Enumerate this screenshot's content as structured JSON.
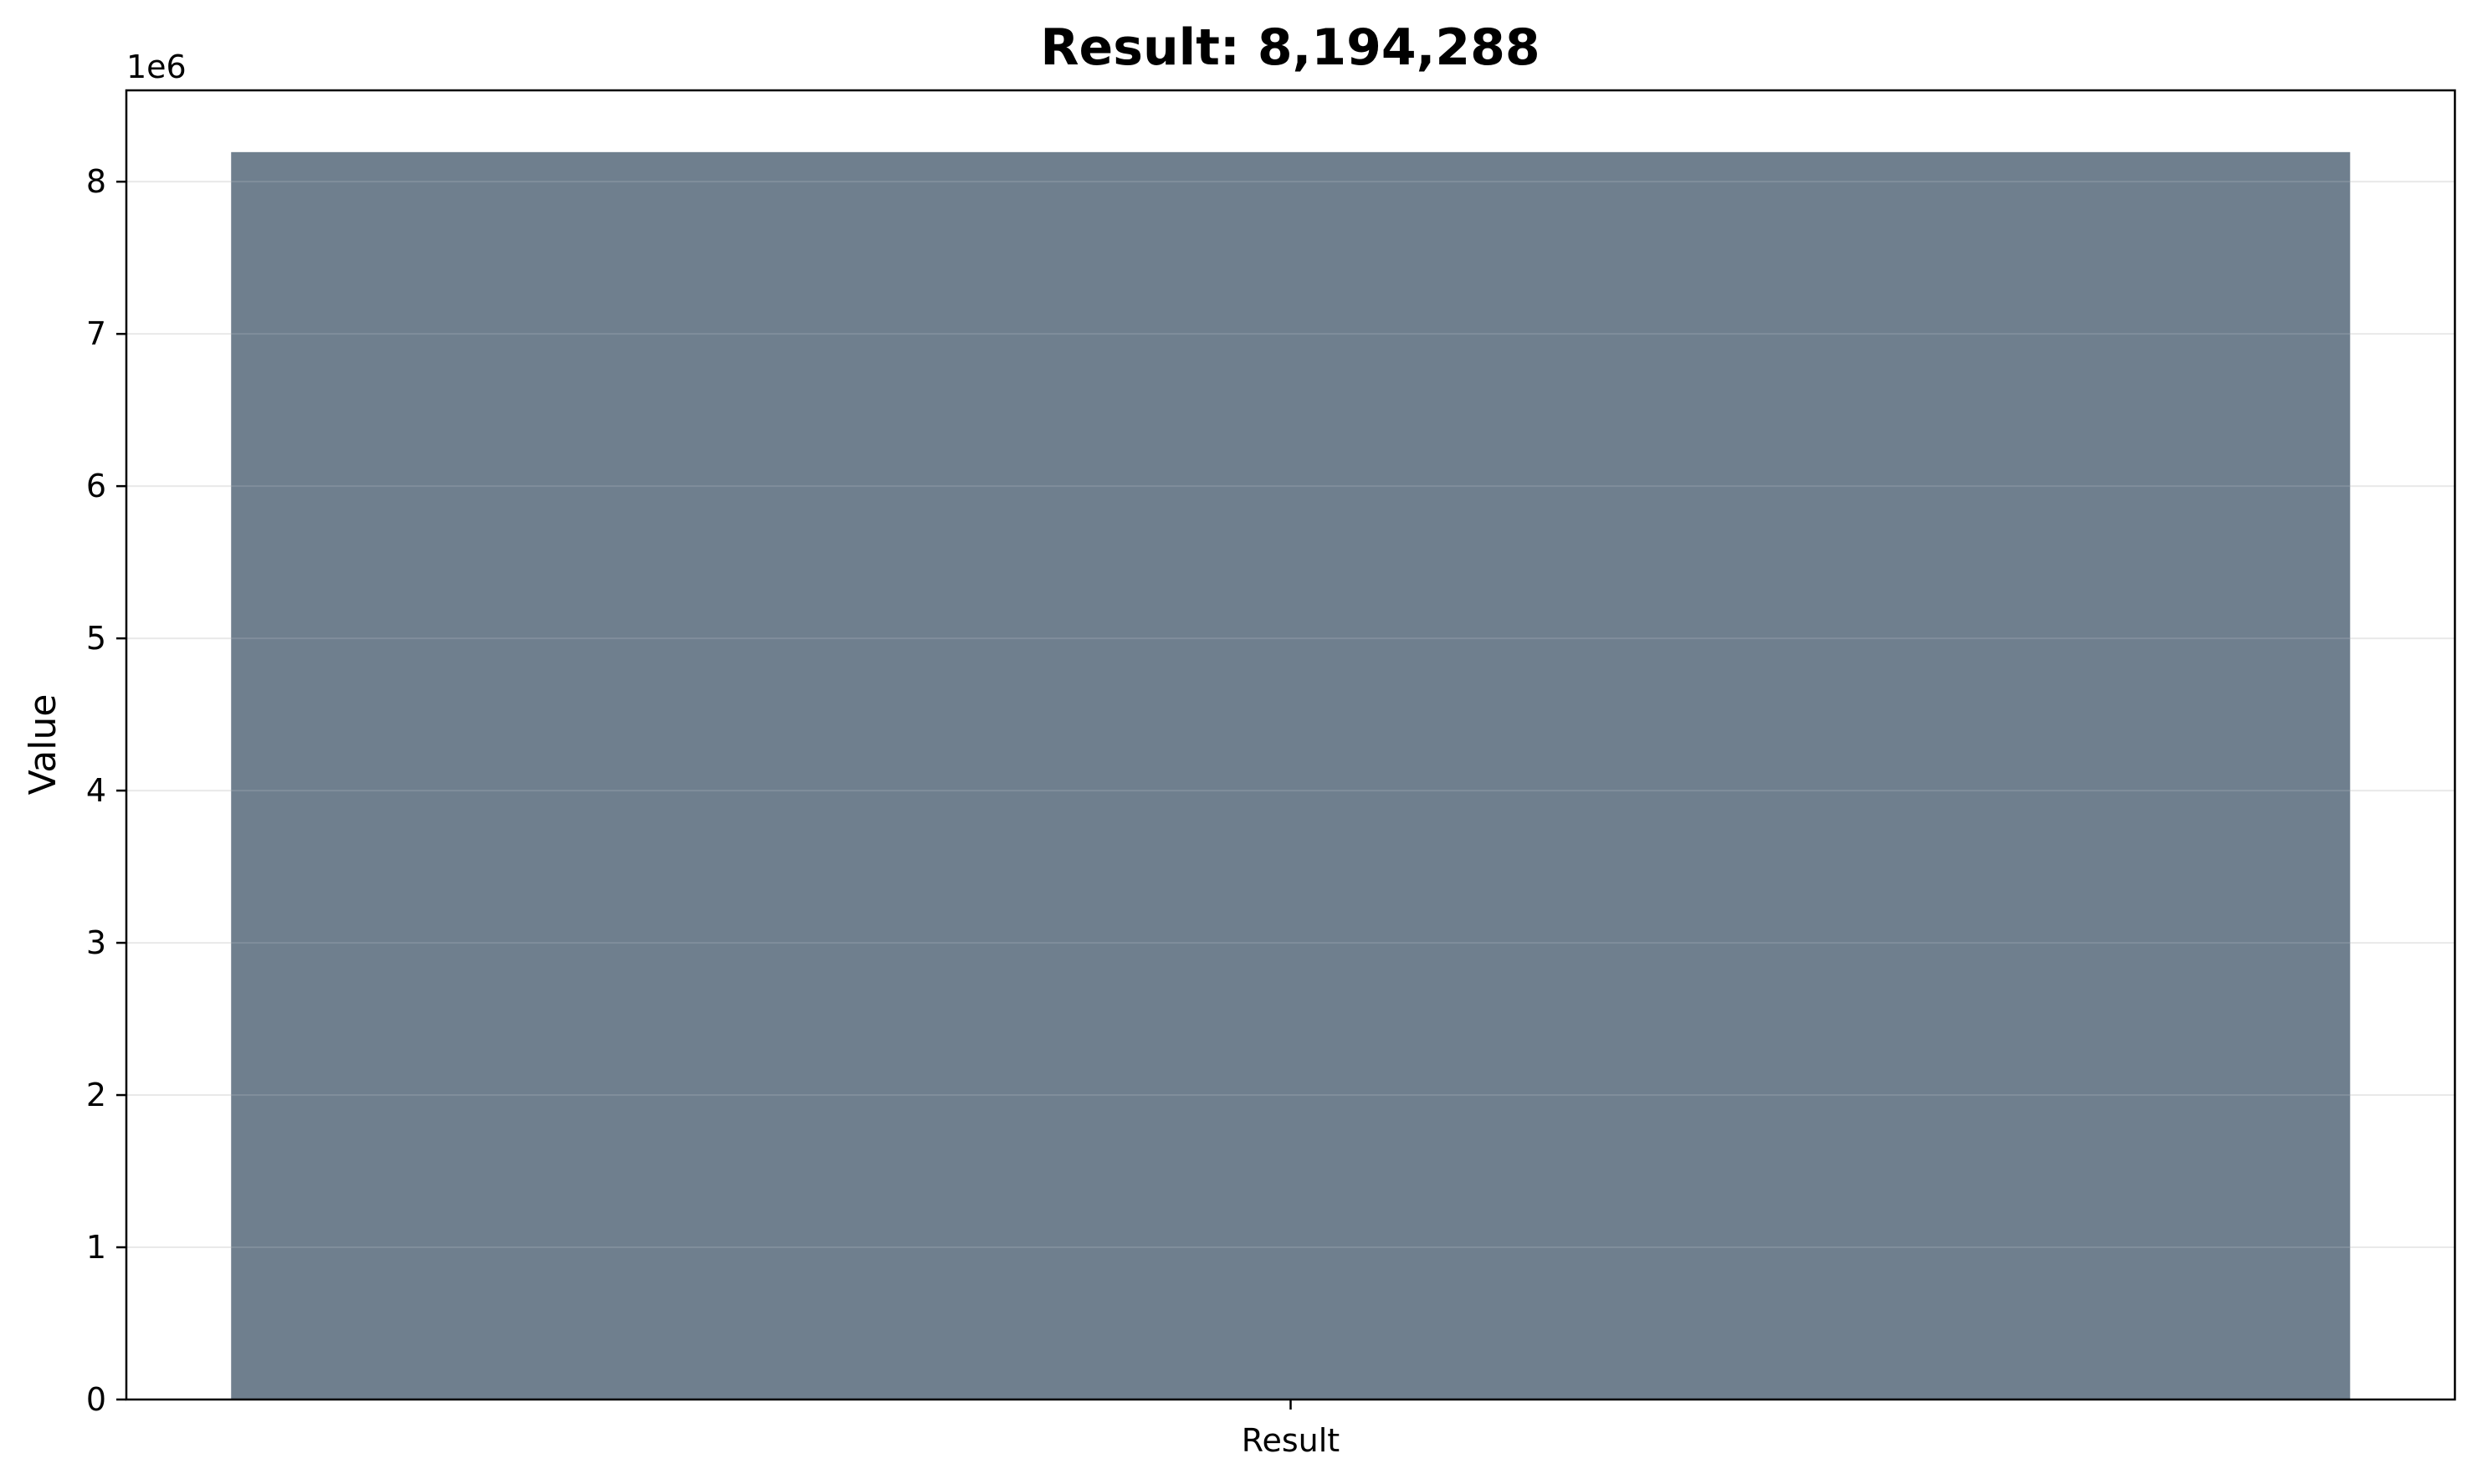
{
  "chart_data": {
    "type": "bar",
    "title": "Result: 8,194,288",
    "xlabel": "",
    "ylabel": "Value",
    "categories": [
      "Result"
    ],
    "values": [
      8194288
    ],
    "ylim": [
      0,
      8600000
    ],
    "yticks": [
      0,
      1,
      2,
      3,
      4,
      5,
      6,
      7,
      8
    ],
    "ytick_labels": [
      "0",
      "1",
      "2",
      "3",
      "4",
      "5",
      "6",
      "7",
      "8"
    ],
    "y_offset_label": "1e6",
    "y_tick_multiplier": 1000000,
    "grid": "y",
    "bar_color": "#6f7f8e",
    "grid_color": "#e6e6e6"
  }
}
